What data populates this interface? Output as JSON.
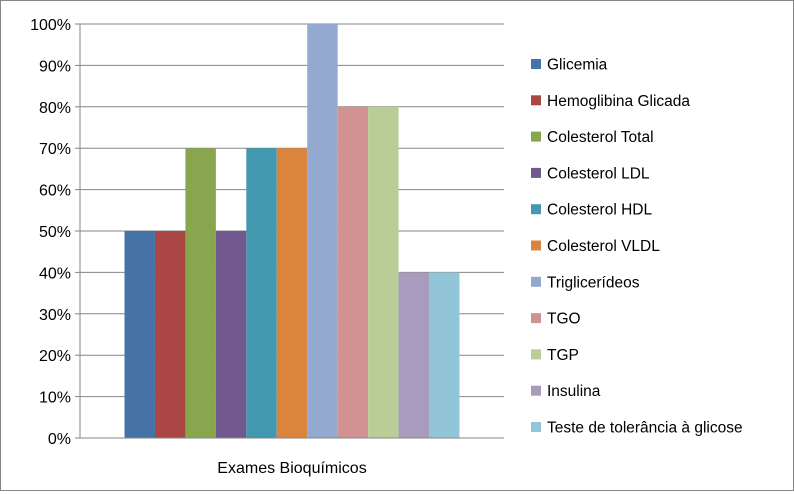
{
  "chart_data": {
    "type": "bar",
    "categories": [
      "Exames Bioquímicos"
    ],
    "series": [
      {
        "name": "Glicemia",
        "values": [
          50
        ],
        "color": "#4572A7"
      },
      {
        "name": "Hemoglibina Glicada",
        "values": [
          50
        ],
        "color": "#AA4643"
      },
      {
        "name": "Colesterol Total",
        "values": [
          70
        ],
        "color": "#89A54E"
      },
      {
        "name": "Colesterol LDL",
        "values": [
          50
        ],
        "color": "#71588F"
      },
      {
        "name": "Colesterol HDL",
        "values": [
          70
        ],
        "color": "#4198AF"
      },
      {
        "name": "Colesterol VLDL",
        "values": [
          70
        ],
        "color": "#DB843D"
      },
      {
        "name": "Triglicerídeos",
        "values": [
          100
        ],
        "color": "#93A9CF"
      },
      {
        "name": "TGO",
        "values": [
          80
        ],
        "color": "#D19392"
      },
      {
        "name": "TGP",
        "values": [
          80
        ],
        "color": "#B9CD96"
      },
      {
        "name": "Insulina",
        "values": [
          40
        ],
        "color": "#A99BBD"
      },
      {
        "name": "Teste de tolerância à glicose",
        "values": [
          40
        ],
        "color": "#92C5D7"
      }
    ],
    "yticks": [
      "0%",
      "10%",
      "20%",
      "30%",
      "40%",
      "50%",
      "60%",
      "70%",
      "80%",
      "90%",
      "100%"
    ],
    "ylim": [
      0,
      100
    ],
    "grid": true,
    "legend": "right",
    "title": "",
    "xlabel": "",
    "ylabel": ""
  }
}
